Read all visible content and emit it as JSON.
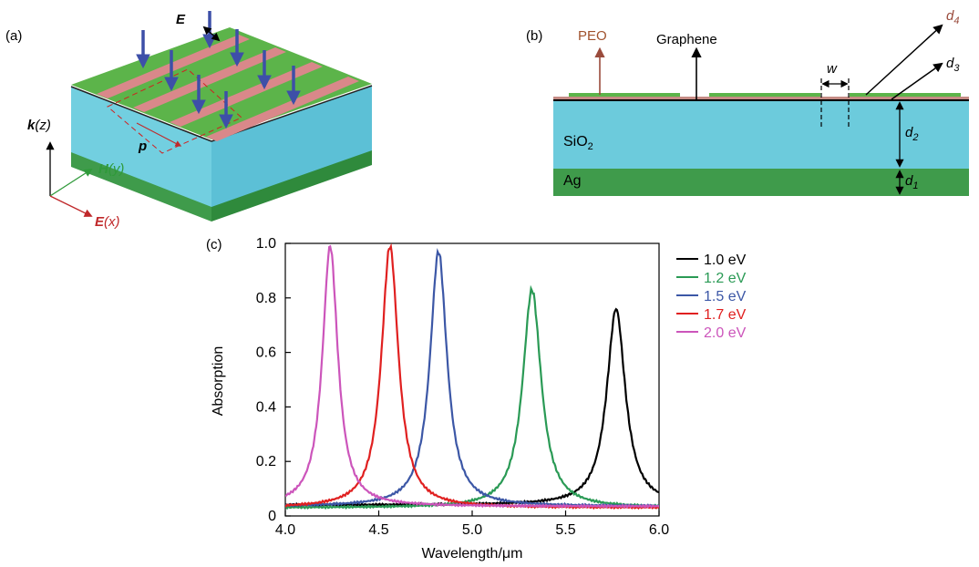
{
  "panel_a": {
    "label": "(a)",
    "field_e": "E",
    "period": "p",
    "axis_k": {
      "bold": "k",
      "rest": "(z)"
    },
    "axis_h": {
      "bold": "H",
      "rest": "(y)"
    },
    "axis_e": {
      "bold": "E",
      "rest": "(x)"
    }
  },
  "panel_b": {
    "label": "(b)",
    "peo": "PEO",
    "graphene": "Graphene",
    "w": "w",
    "sio2": {
      "main": "SiO",
      "sub": "2"
    },
    "ag": "Ag",
    "d1": {
      "main": "d",
      "sub": "1"
    },
    "d2": {
      "main": "d",
      "sub": "2"
    },
    "d3": {
      "main": "d",
      "sub": "3"
    },
    "d4": {
      "main": "d",
      "sub": "4"
    }
  },
  "panel_c": {
    "label": "(c)"
  },
  "colors": {
    "ribbon_green": "#5cb44a",
    "strip_pink": "#d9888a",
    "sio2_blue": "#6ccbdc",
    "ag_green": "#3f9b4b",
    "arrow_blue": "#3d4fa8",
    "peo_brown": "#9a4b3c"
  },
  "chart_data": {
    "type": "line",
    "xlabel": "Wavelength/μm",
    "ylabel": "Absorption",
    "xlim": [
      4.0,
      6.0
    ],
    "ylim": [
      0,
      1.0
    ],
    "xticks": [
      "4.0",
      "4.5",
      "5.0",
      "5.5",
      "6.0"
    ],
    "yticks": [
      "0",
      "0.2",
      "0.4",
      "0.6",
      "0.8",
      "1.0"
    ],
    "legend_position": "top-right",
    "series": [
      {
        "name": "1.0 eV",
        "color": "#000000",
        "peak_x": 5.77,
        "peak_y": 0.76,
        "width": 0.12,
        "baseline": 0.04
      },
      {
        "name": "1.2 eV",
        "color": "#2a9a55",
        "peak_x": 5.32,
        "peak_y": 0.83,
        "width": 0.12,
        "baseline": 0.03
      },
      {
        "name": "1.5 eV",
        "color": "#3c57a6",
        "peak_x": 4.82,
        "peak_y": 0.97,
        "width": 0.11,
        "baseline": 0.035
      },
      {
        "name": "1.7 eV",
        "color": "#e02020",
        "peak_x": 4.56,
        "peak_y": 0.99,
        "width": 0.11,
        "baseline": 0.03
      },
      {
        "name": "2.0 eV",
        "color": "#cc55bb",
        "peak_x": 4.24,
        "peak_y": 0.99,
        "width": 0.1,
        "baseline": 0.035
      }
    ]
  }
}
